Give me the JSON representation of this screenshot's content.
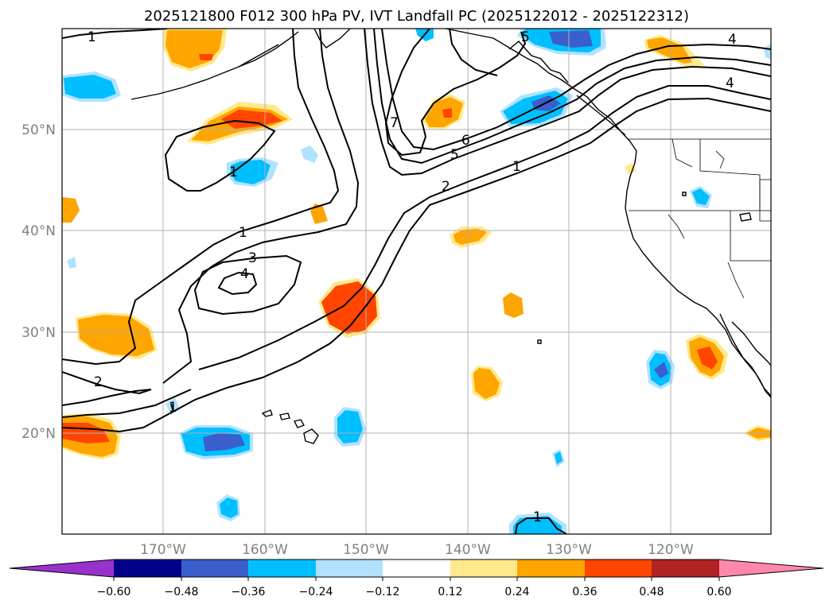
{
  "title": "2025121800 F012 300 hPa PV, IVT Landfall PC (2025122012 - 2025122312)",
  "axes": {
    "lat_labels": [
      "50°N",
      "40°N",
      "30°N",
      "20°N"
    ],
    "lon_labels": [
      "170°W",
      "160°W",
      "150°W",
      "140°W",
      "130°W",
      "120°W"
    ]
  },
  "colorbar": {
    "tick_labels": [
      "−0.60",
      "−0.48",
      "−0.36",
      "−0.24",
      "−0.12",
      "0.12",
      "0.24",
      "0.36",
      "0.48",
      "0.60"
    ],
    "colors": [
      "#9932cc",
      "#00008b",
      "#3a5fcd",
      "#00bfff",
      "#b0e2ff",
      "#ffffff",
      "#ffe98a",
      "#ffa500",
      "#ff4500",
      "#b22222",
      "#ff88aa"
    ]
  },
  "contour_labels": {
    "c1a": "1",
    "c1b": "1",
    "c1c": "1",
    "c1d": "1",
    "c1e": "1",
    "c1f": "1",
    "c2a": "2",
    "c2b": "2",
    "c3a": "3",
    "c4a": "4",
    "c4b": "4",
    "c4c": "4",
    "c5a": "5",
    "c5b": "5",
    "c6a": "6",
    "c7a": "7"
  }
}
